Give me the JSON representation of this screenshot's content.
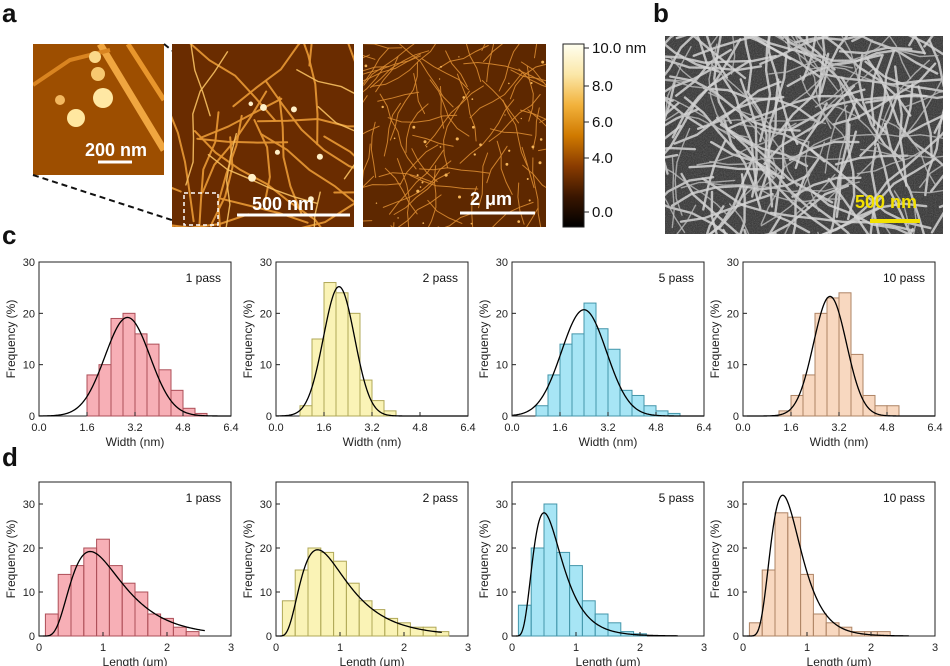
{
  "panel_labels": {
    "a": "a",
    "b": "b",
    "c": "c",
    "d": "d"
  },
  "images": {
    "inset": {
      "scale_label": "200 nm"
    },
    "afm_main": {
      "scale_label": "500 nm"
    },
    "afm_wide": {
      "scale_label": "2 μm"
    },
    "sem": {
      "scale_label": "500 nm",
      "label_color": "#f2e000"
    }
  },
  "colorbar": {
    "ticks": [
      "10.0 nm",
      "8.0",
      "6.0",
      "4.0",
      "0.0"
    ],
    "stops": [
      "#000000",
      "#3a1600",
      "#8a3c00",
      "#d07a00",
      "#f2b23c",
      "#fbe7a8",
      "#fffff0"
    ]
  },
  "chart_data": [
    {
      "type": "bar",
      "row": "c",
      "title": "1 pass",
      "color": "#f06e7a",
      "xlabel": "Width (nm)",
      "ylabel": "Frequency (%)",
      "xlim": [
        0,
        6.4
      ],
      "ylim": [
        0,
        30
      ],
      "xticks": [
        0.0,
        1.6,
        3.2,
        4.8,
        6.4
      ],
      "xtick_labels": [
        "0.0",
        "1.6",
        "3.2",
        "4.8",
        "6.4"
      ],
      "yticks": [
        0,
        10,
        20,
        30
      ],
      "bin_edges": [
        1.6,
        2.0,
        2.4,
        2.8,
        3.2,
        3.6,
        4.0,
        4.4,
        4.8,
        5.2,
        5.6
      ],
      "values": [
        8,
        10,
        19,
        20,
        16,
        14,
        9,
        5,
        1.5,
        0.5
      ],
      "fit": {
        "kind": "normal",
        "mu": 2.95,
        "sigma": 0.75,
        "peak": 19.2
      }
    },
    {
      "type": "bar",
      "row": "c",
      "title": "2 pass",
      "color": "#f5ea7a",
      "xlabel": "Width (nm)",
      "ylabel": "Frequency (%)",
      "xlim": [
        0,
        6.4
      ],
      "ylim": [
        0,
        30
      ],
      "xticks": [
        0.0,
        1.6,
        3.2,
        4.8,
        6.4
      ],
      "xtick_labels": [
        "0.0",
        "1.6",
        "3.2",
        "4.8",
        "6.4"
      ],
      "yticks": [
        0,
        10,
        20,
        30
      ],
      "bin_edges": [
        0.8,
        1.2,
        1.6,
        2.0,
        2.4,
        2.8,
        3.2,
        3.6,
        4.0
      ],
      "values": [
        2,
        15,
        26,
        24,
        20,
        7,
        3,
        1
      ],
      "fit": {
        "kind": "normal",
        "mu": 2.1,
        "sigma": 0.52,
        "peak": 25.2
      }
    },
    {
      "type": "bar",
      "row": "c",
      "title": "5 pass",
      "color": "#5fd0ec",
      "xlabel": "Width (nm)",
      "ylabel": "Frequency (%)",
      "xlim": [
        0,
        6.4
      ],
      "ylim": [
        0,
        30
      ],
      "xticks": [
        0.0,
        1.6,
        3.2,
        4.8,
        6.4
      ],
      "xtick_labels": [
        "0.0",
        "1.6",
        "3.2",
        "4.8",
        "6.4"
      ],
      "yticks": [
        0,
        10,
        20,
        30
      ],
      "bin_edges": [
        0.8,
        1.2,
        1.6,
        2.0,
        2.4,
        2.8,
        3.2,
        3.6,
        4.0,
        4.4,
        4.8,
        5.2,
        5.6
      ],
      "values": [
        2,
        8,
        14,
        16,
        22,
        17,
        13,
        5,
        4,
        2,
        1,
        0.5
      ],
      "fit": {
        "kind": "normal",
        "mu": 2.4,
        "sigma": 0.75,
        "peak": 20.7
      }
    },
    {
      "type": "bar",
      "row": "c",
      "title": "10 pass",
      "color": "#f2b88c",
      "xlabel": "Width (nm)",
      "ylabel": "Frequency (%)",
      "xlim": [
        0,
        6.4
      ],
      "ylim": [
        0,
        30
      ],
      "xticks": [
        0.0,
        1.6,
        3.2,
        4.8,
        6.4
      ],
      "xtick_labels": [
        "0.0",
        "1.6",
        "3.2",
        "4.8",
        "6.4"
      ],
      "yticks": [
        0,
        10,
        20,
        30
      ],
      "bin_edges": [
        1.2,
        1.6,
        2.0,
        2.4,
        2.8,
        3.2,
        3.6,
        4.0,
        4.4,
        4.8,
        5.2
      ],
      "values": [
        1,
        4,
        8,
        20,
        23,
        24,
        12,
        4,
        2,
        2
      ],
      "fit": {
        "kind": "normal",
        "mu": 2.9,
        "sigma": 0.55,
        "peak": 23.3
      }
    },
    {
      "type": "bar",
      "row": "d",
      "title": "1 pass",
      "color": "#f06e7a",
      "xlabel": "Length (μm)",
      "ylabel": "Frequency (%)",
      "xlim": [
        0,
        3
      ],
      "ylim": [
        0,
        35
      ],
      "xticks": [
        0,
        1,
        2,
        3
      ],
      "xtick_labels": [
        "0",
        "1",
        "2",
        "3"
      ],
      "yticks": [
        0,
        10,
        20,
        30
      ],
      "bin_edges": [
        0.1,
        0.3,
        0.5,
        0.7,
        0.9,
        1.1,
        1.3,
        1.5,
        1.7,
        1.9,
        2.1,
        2.3,
        2.5
      ],
      "values": [
        5,
        14,
        16,
        20,
        22,
        16,
        12,
        10,
        5,
        4,
        2,
        1
      ],
      "fit": {
        "kind": "lognormal",
        "mode": 0.8,
        "s": 0.5,
        "peak": 19.2
      }
    },
    {
      "type": "bar",
      "row": "d",
      "title": "2 pass",
      "color": "#f5ea7a",
      "xlabel": "Length (μm)",
      "ylabel": "Frequency (%)",
      "xlim": [
        0,
        3
      ],
      "ylim": [
        0,
        35
      ],
      "xticks": [
        0,
        1,
        2,
        3
      ],
      "xtick_labels": [
        "0",
        "1",
        "2",
        "3"
      ],
      "yticks": [
        0,
        10,
        20,
        30
      ],
      "bin_edges": [
        0.1,
        0.3,
        0.5,
        0.7,
        0.9,
        1.1,
        1.3,
        1.5,
        1.7,
        1.9,
        2.1,
        2.3,
        2.5,
        2.7
      ],
      "values": [
        8,
        15,
        20,
        19,
        17,
        12,
        8,
        6,
        4,
        3,
        2,
        2,
        1
      ],
      "fit": {
        "kind": "lognormal",
        "mode": 0.65,
        "s": 0.55,
        "peak": 19.6
      }
    },
    {
      "type": "bar",
      "row": "d",
      "title": "5 pass",
      "color": "#5fd0ec",
      "xlabel": "Length (μm)",
      "ylabel": "Frequency (%)",
      "xlim": [
        0,
        3
      ],
      "ylim": [
        0,
        35
      ],
      "xticks": [
        0,
        1,
        2,
        3
      ],
      "xtick_labels": [
        "0",
        "1",
        "2",
        "3"
      ],
      "yticks": [
        0,
        10,
        20,
        30
      ],
      "bin_edges": [
        0.1,
        0.3,
        0.5,
        0.7,
        0.9,
        1.1,
        1.3,
        1.5,
        1.7,
        1.9,
        2.1
      ],
      "values": [
        7,
        20,
        30,
        19,
        16,
        8,
        5,
        3,
        1,
        0.5
      ],
      "fit": {
        "kind": "lognormal",
        "mode": 0.5,
        "s": 0.45,
        "peak": 28
      }
    },
    {
      "type": "bar",
      "row": "d",
      "title": "10 pass",
      "color": "#f2b88c",
      "xlabel": "Length (μm)",
      "ylabel": "Frequency (%)",
      "xlim": [
        0,
        3
      ],
      "ylim": [
        0,
        35
      ],
      "xticks": [
        0,
        1,
        2,
        3
      ],
      "xtick_labels": [
        "0",
        "1",
        "2",
        "3"
      ],
      "yticks": [
        0,
        10,
        20,
        30
      ],
      "bin_edges": [
        0.1,
        0.3,
        0.5,
        0.7,
        0.9,
        1.1,
        1.3,
        1.5,
        1.7,
        1.9,
        2.1,
        2.3
      ],
      "values": [
        3,
        15,
        28,
        27,
        14,
        5,
        3,
        2,
        1,
        1,
        1
      ],
      "fit": {
        "kind": "lognormal",
        "mode": 0.62,
        "s": 0.38,
        "peak": 32
      }
    }
  ]
}
